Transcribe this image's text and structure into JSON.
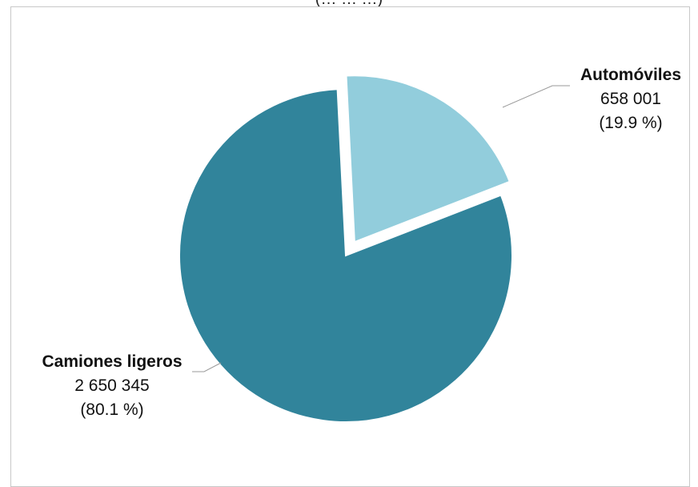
{
  "header": {
    "partial_text": "(… … …)"
  },
  "chart_data": {
    "type": "pie",
    "categories": [
      "Automóviles",
      "Camiones ligeros"
    ],
    "values": [
      658001,
      2650345
    ],
    "value_labels": [
      "658 001",
      "2 650 345"
    ],
    "percent_labels": [
      "(19.9 %)",
      "(80.1 %)"
    ],
    "percentages": [
      19.9,
      80.1
    ],
    "colors": [
      "#92cddc",
      "#31849b"
    ],
    "exploded_slice": "Automóviles",
    "title": "",
    "legend": "none"
  }
}
